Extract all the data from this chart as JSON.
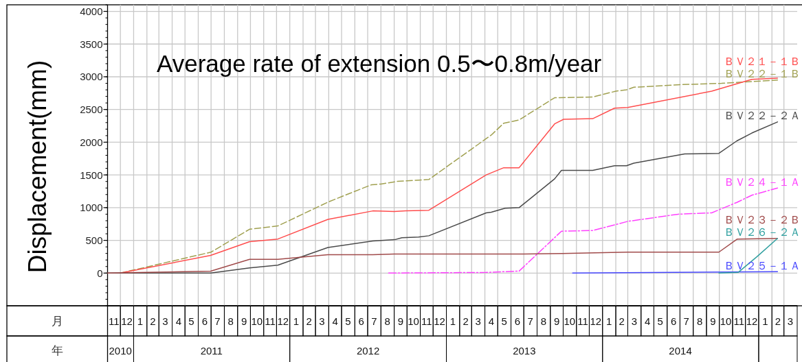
{
  "chart_data": {
    "type": "line",
    "title": "Average rate of extension 0.5〜0.8m/year",
    "ylabel": "Displacement(mm)",
    "xlabel": "月",
    "x2label": "年",
    "xlim": [
      "2010-11-01",
      "2015-04-01"
    ],
    "x2lim": [
      "2010-11-01",
      "2015-04-01"
    ],
    "xticks": [
      {
        "value": "2010-11-16",
        "label": "11"
      },
      {
        "value": "2010-12-16",
        "label": "12"
      },
      {
        "value": "2011-01-16",
        "label": "1"
      },
      {
        "value": "2011-02-15",
        "label": "2"
      },
      {
        "value": "2011-03-16",
        "label": "3"
      },
      {
        "value": "2011-04-16",
        "label": "4"
      },
      {
        "value": "2011-05-16",
        "label": "5"
      },
      {
        "value": "2011-06-16",
        "label": "6"
      },
      {
        "value": "2011-07-16",
        "label": "7"
      },
      {
        "value": "2011-08-16",
        "label": "8"
      },
      {
        "value": "2011-09-16",
        "label": "9"
      },
      {
        "value": "2011-10-16",
        "label": "10"
      },
      {
        "value": "2011-11-16",
        "label": "11"
      },
      {
        "value": "2011-12-16",
        "label": "12"
      },
      {
        "value": "2012-01-16",
        "label": "1"
      },
      {
        "value": "2012-02-15",
        "label": "2"
      },
      {
        "value": "2012-03-16",
        "label": "3"
      },
      {
        "value": "2012-04-16",
        "label": "4"
      },
      {
        "value": "2012-05-16",
        "label": "5"
      },
      {
        "value": "2012-06-16",
        "label": "6"
      },
      {
        "value": "2012-07-16",
        "label": "7"
      },
      {
        "value": "2012-08-16",
        "label": "8"
      },
      {
        "value": "2012-09-16",
        "label": "9"
      },
      {
        "value": "2012-10-16",
        "label": "10"
      },
      {
        "value": "2012-11-16",
        "label": "11"
      },
      {
        "value": "2012-12-16",
        "label": "12"
      },
      {
        "value": "2013-01-16",
        "label": "1"
      },
      {
        "value": "2013-02-15",
        "label": "2"
      },
      {
        "value": "2013-03-16",
        "label": "3"
      },
      {
        "value": "2013-04-16",
        "label": "4"
      },
      {
        "value": "2013-05-16",
        "label": "5"
      },
      {
        "value": "2013-06-16",
        "label": "6"
      },
      {
        "value": "2013-07-16",
        "label": "7"
      },
      {
        "value": "2013-08-16",
        "label": "8"
      },
      {
        "value": "2013-09-16",
        "label": "9"
      },
      {
        "value": "2013-10-16",
        "label": "10"
      },
      {
        "value": "2013-11-16",
        "label": "11"
      },
      {
        "value": "2013-12-16",
        "label": "12"
      },
      {
        "value": "2014-01-16",
        "label": "1"
      },
      {
        "value": "2014-02-15",
        "label": "2"
      },
      {
        "value": "2014-03-16",
        "label": "3"
      },
      {
        "value": "2014-04-16",
        "label": "4"
      },
      {
        "value": "2014-05-16",
        "label": "5"
      },
      {
        "value": "2014-06-16",
        "label": "6"
      },
      {
        "value": "2014-07-16",
        "label": "7"
      },
      {
        "value": "2014-08-16",
        "label": "8"
      },
      {
        "value": "2014-09-16",
        "label": "9"
      },
      {
        "value": "2014-10-16",
        "label": "10"
      },
      {
        "value": "2014-11-16",
        "label": "11"
      },
      {
        "value": "2014-12-16",
        "label": "12"
      },
      {
        "value": "2015-01-16",
        "label": "1"
      },
      {
        "value": "2015-02-15",
        "label": "2"
      },
      {
        "value": "2015-03-16",
        "label": "3"
      }
    ],
    "x2ticks": [
      {
        "value": "2010-12-01",
        "label": "2010"
      },
      {
        "value": "2011-07-02",
        "label": "2011"
      },
      {
        "value": "2012-07-02",
        "label": "2012"
      },
      {
        "value": "2013-07-02",
        "label": "2013"
      },
      {
        "value": "2014-07-02",
        "label": "2014"
      }
    ],
    "ylim": [
      -500,
      4100
    ],
    "yticks": [
      0,
      500,
      1000,
      1500,
      2000,
      2500,
      3000,
      3500,
      4000
    ],
    "grid": true,
    "series": [
      {
        "name": "ＢＶ２２－１Ｂ",
        "color": "#a0a050",
        "line_style": "dashed",
        "x": [
          "2010-12-01",
          "2011-07-01",
          "2011-09-29",
          "2011-12-04",
          "2012-04-01",
          "2012-07-10",
          "2012-08-01",
          "2012-09-07",
          "2012-10-28",
          "2012-11-21",
          "2013-04-16",
          "2013-05-15",
          "2013-06-20",
          "2013-09-11",
          "2013-12-09",
          "2014-02-01",
          "2014-02-26",
          "2014-03-15",
          "2014-07-03",
          "2014-10-06",
          "2015-02-14"
        ],
        "values": [
          0,
          320,
          670,
          720,
          1090,
          1350,
          1360,
          1400,
          1420,
          1430,
          2110,
          2290,
          2340,
          2680,
          2690,
          2780,
          2800,
          2840,
          2880,
          2900,
          2950
        ]
      },
      {
        "name": "ＢＶ２１－１Ｂ",
        "color": "#ff4d4d",
        "line_style": "solid",
        "x": [
          "2010-12-01",
          "2011-06-30",
          "2011-09-29",
          "2011-12-04",
          "2012-03-30",
          "2012-07-13",
          "2012-09-01",
          "2012-09-28",
          "2012-11-21",
          "2013-04-04",
          "2013-05-15",
          "2013-06-20",
          "2013-09-11",
          "2013-10-02",
          "2013-12-09",
          "2014-01-29",
          "2014-03-01",
          "2014-09-13",
          "2014-12-16",
          "2015-02-14"
        ],
        "values": [
          0,
          270,
          480,
          520,
          820,
          950,
          940,
          950,
          960,
          1500,
          1610,
          1610,
          2280,
          2350,
          2360,
          2520,
          2530,
          2780,
          2960,
          2980
        ]
      },
      {
        "name": "ＢＶ２２－２Ａ",
        "color": "#4a4a4a",
        "line_style": "solid",
        "x": [
          "2010-11-01",
          "2011-06-30",
          "2011-09-29",
          "2011-12-04",
          "2012-03-30",
          "2012-07-13",
          "2012-09-02",
          "2012-09-19",
          "2012-10-28",
          "2012-11-21",
          "2013-04-04",
          "2013-04-16",
          "2013-05-18",
          "2013-06-20",
          "2013-09-11",
          "2013-09-27",
          "2013-12-09",
          "2014-01-29",
          "2014-02-26",
          "2014-03-15",
          "2014-07-12",
          "2014-09-30",
          "2014-11-11",
          "2014-12-16",
          "2015-02-14"
        ],
        "values": [
          0,
          0,
          80,
          120,
          390,
          490,
          510,
          540,
          550,
          570,
          920,
          930,
          990,
          1000,
          1440,
          1570,
          1570,
          1640,
          1640,
          1680,
          1820,
          1830,
          2020,
          2140,
          2310
        ]
      },
      {
        "name": "ＢＶ２４－１Ａ",
        "color": "#ff40ff",
        "line_style": "dashdot",
        "x": [
          "2012-08-19",
          "2013-04-04",
          "2013-06-20",
          "2013-09-27",
          "2013-12-09",
          "2014-03-01",
          "2014-06-27",
          "2014-09-13",
          "2014-11-11",
          "2014-12-16",
          "2015-02-14"
        ],
        "values": [
          0,
          10,
          30,
          640,
          650,
          790,
          900,
          920,
          1080,
          1190,
          1300
        ]
      },
      {
        "name": "ＢＶ２５－１Ａ",
        "color": "#4848ff",
        "line_style": "solid",
        "x": [
          "2013-10-23",
          "2015-02-14"
        ],
        "values": [
          0,
          20
        ]
      },
      {
        "name": "ＢＶ２３－２Ｂ",
        "color": "#a04a4a",
        "line_style": "solid",
        "x": [
          "2010-11-01",
          "2011-06-30",
          "2011-09-29",
          "2011-12-04",
          "2012-03-30",
          "2012-07-13",
          "2012-09-01",
          "2012-11-21",
          "2013-06-20",
          "2013-09-29",
          "2014-03-01",
          "2014-09-30",
          "2014-11-12",
          "2015-02-14"
        ],
        "values": [
          0,
          30,
          210,
          210,
          280,
          280,
          290,
          290,
          290,
          300,
          320,
          320,
          520,
          530
        ]
      },
      {
        "name": "ＢＶ２６－２Ａ",
        "color": "#30a0a0",
        "line_style": "solid",
        "x": [
          "2014-09-30",
          "2014-11-14",
          "2014-12-28",
          "2015-02-14"
        ],
        "values": [
          0,
          10,
          250,
          530
        ]
      }
    ]
  }
}
